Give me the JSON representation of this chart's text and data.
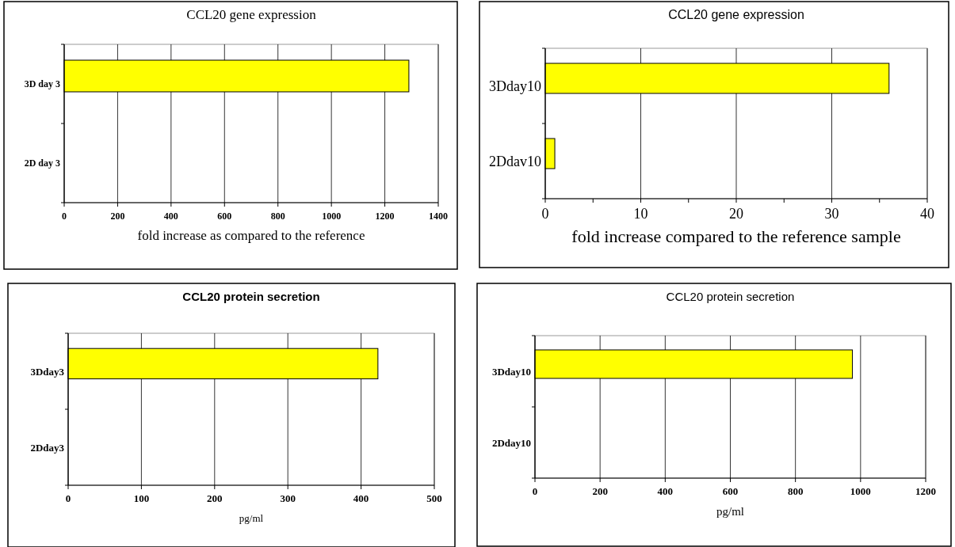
{
  "chart_data": [
    {
      "type": "bar",
      "orientation": "horizontal",
      "title": "CCL20 gene expression",
      "xlabel": "fold increase as compared to the reference",
      "categories": [
        "3D day 3",
        "2D day 3"
      ],
      "values": [
        1290,
        null
      ],
      "color": "#ffff00",
      "xlim": [
        0,
        1400
      ],
      "xticks": [
        0,
        200,
        400,
        600,
        800,
        1000,
        1200,
        1400
      ],
      "grid": "x"
    },
    {
      "type": "bar",
      "orientation": "horizontal",
      "title": "CCL20 gene expression",
      "xlabel": "fold increase compared to the reference sample",
      "categories": [
        "3Dday10",
        "2Ddav10"
      ],
      "values": [
        36,
        1
      ],
      "color": "#ffff00",
      "xlim": [
        0,
        40
      ],
      "xticks": [
        0,
        {
          "value": 5,
          "label": null
        },
        10,
        {
          "value": 15,
          "label": null
        },
        20,
        {
          "value": 25,
          "label": null
        },
        30,
        {
          "value": 35,
          "label": null
        },
        40
      ],
      "grid": "x"
    },
    {
      "type": "bar",
      "orientation": "horizontal",
      "title": "CCL20 protein secretion",
      "xlabel": "pg/ml",
      "categories": [
        "3Dday3",
        "2Dday3"
      ],
      "values": [
        423,
        0
      ],
      "color": "#ffff00",
      "xlim": [
        0,
        500
      ],
      "xticks": [
        0,
        100,
        200,
        300,
        400,
        500
      ],
      "grid": "x"
    },
    {
      "type": "bar",
      "orientation": "horizontal",
      "title": "CCL20 protein secretion",
      "xlabel": "pg/ml",
      "categories": [
        "3Dday10",
        "2Dday10"
      ],
      "values": [
        975,
        0
      ],
      "color": "#ffff00",
      "xlim": [
        0,
        1200
      ],
      "xticks": [
        0,
        200,
        400,
        600,
        800,
        1000,
        1200
      ],
      "grid": "x"
    }
  ]
}
